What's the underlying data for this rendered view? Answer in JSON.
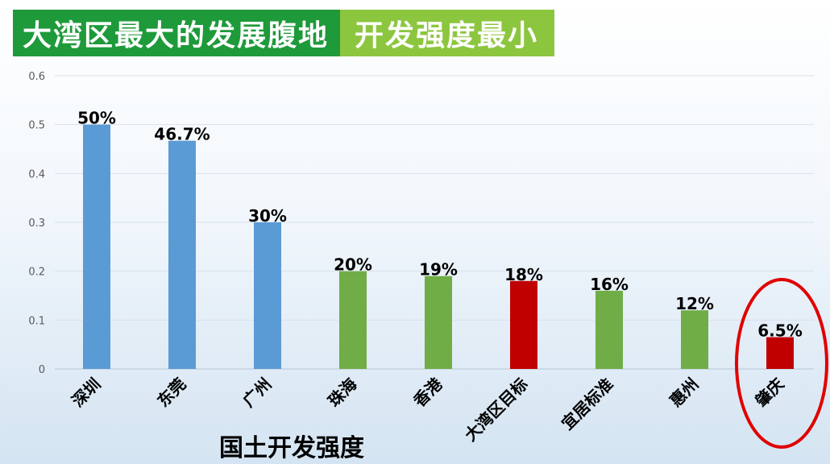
{
  "banner": {
    "title_main": "大湾区最大的发展腹地",
    "title_accent": "开发强度最小",
    "color_main": "#1e9a3a",
    "color_accent": "#8cc63f"
  },
  "chart_data": {
    "type": "bar",
    "title": "",
    "xlabel": "国土开发强度",
    "ylabel": "",
    "ylim": [
      0,
      0.6
    ],
    "yticks": [
      "0",
      "0.1",
      "0.2",
      "0.3",
      "0.4",
      "0.5",
      "0.6"
    ],
    "grid": true,
    "categories": [
      "深圳",
      "东莞",
      "广州",
      "珠海",
      "香港",
      "大湾区目标",
      "宜居标准",
      "惠州",
      "肇庆"
    ],
    "values": [
      0.5,
      0.467,
      0.3,
      0.2,
      0.19,
      0.18,
      0.16,
      0.12,
      0.065
    ],
    "value_labels": [
      "50%",
      "46.7%",
      "30%",
      "20%",
      "19%",
      "18%",
      "16%",
      "12%",
      "6.5%"
    ],
    "colors": [
      "#5b9bd5",
      "#5b9bd5",
      "#5b9bd5",
      "#70ad47",
      "#70ad47",
      "#c00000",
      "#70ad47",
      "#70ad47",
      "#c00000"
    ],
    "highlighted_category": "肇庆",
    "highlight_color": "#e00000"
  }
}
